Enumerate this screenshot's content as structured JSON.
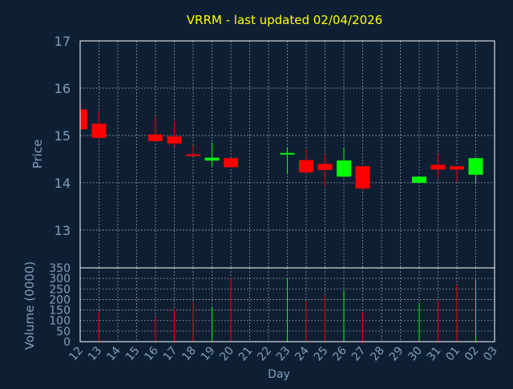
{
  "colors": {
    "background": "#0f1f33",
    "title": "#ffff00",
    "axis_text": "#7f9fbf",
    "frame": "#ffffff",
    "grid": "#8a95a3",
    "up": "#00ff00",
    "down": "#ff0000"
  },
  "chart_data": [
    {
      "type": "candlestick",
      "title": "VRRM - last updated 02/04/2026",
      "ylabel": "Price",
      "ylim": [
        12.2,
        17
      ],
      "yticks": [
        13,
        14,
        15,
        16,
        17
      ],
      "grid": true,
      "series": [
        {
          "day": "12",
          "open": 15.55,
          "high": 15.55,
          "low": 15.13,
          "close": 15.13
        },
        {
          "day": "13",
          "open": 15.25,
          "high": 15.52,
          "low": 14.92,
          "close": 14.95
        },
        {
          "day": "16",
          "open": 15.02,
          "high": 15.4,
          "low": 14.88,
          "close": 14.88
        },
        {
          "day": "17",
          "open": 14.98,
          "high": 15.3,
          "low": 14.75,
          "close": 14.83
        },
        {
          "day": "18",
          "open": 14.6,
          "high": 14.8,
          "low": 14.58,
          "close": 14.58
        },
        {
          "day": "19",
          "open": 14.47,
          "high": 14.85,
          "low": 14.35,
          "close": 14.53
        },
        {
          "day": "20",
          "open": 14.52,
          "high": 14.52,
          "low": 14.32,
          "close": 14.33
        },
        {
          "day": "23",
          "open": 14.6,
          "high": 14.75,
          "low": 14.18,
          "close": 14.63
        },
        {
          "day": "24",
          "open": 14.48,
          "high": 14.7,
          "low": 14.2,
          "close": 14.22
        },
        {
          "day": "25",
          "open": 14.4,
          "high": 14.6,
          "low": 13.93,
          "close": 14.27
        },
        {
          "day": "26",
          "open": 14.13,
          "high": 14.75,
          "low": 14.13,
          "close": 14.47
        },
        {
          "day": "27",
          "open": 14.35,
          "high": 14.35,
          "low": 13.83,
          "close": 13.88
        },
        {
          "day": "30",
          "open": 14.0,
          "high": 14.13,
          "low": 14.0,
          "close": 14.13
        },
        {
          "day": "31",
          "open": 14.38,
          "high": 14.6,
          "low": 14.1,
          "close": 14.28
        },
        {
          "day": "01",
          "open": 14.35,
          "high": 14.35,
          "low": 14.02,
          "close": 14.28
        },
        {
          "day": "02",
          "open": 14.17,
          "high": 14.52,
          "low": 13.97,
          "close": 14.52
        }
      ]
    },
    {
      "type": "bar",
      "ylabel": "Volume (0000)",
      "xlabel": "Day",
      "ylim": [
        0,
        350
      ],
      "yticks": [
        0,
        50,
        100,
        150,
        200,
        250,
        300,
        350
      ],
      "categories": [
        "12",
        "13",
        "14",
        "15",
        "16",
        "17",
        "18",
        "19",
        "20",
        "21",
        "22",
        "23",
        "24",
        "25",
        "26",
        "27",
        "28",
        "29",
        "30",
        "31",
        "01",
        "02",
        "03"
      ],
      "grid": true,
      "series": [
        {
          "day": "13",
          "value": 145,
          "direction": "down"
        },
        {
          "day": "16",
          "value": 115,
          "direction": "down"
        },
        {
          "day": "17",
          "value": 155,
          "direction": "down"
        },
        {
          "day": "18",
          "value": 185,
          "direction": "down"
        },
        {
          "day": "19",
          "value": 165,
          "direction": "up"
        },
        {
          "day": "20",
          "value": 305,
          "direction": "down"
        },
        {
          "day": "23",
          "value": 300,
          "direction": "up"
        },
        {
          "day": "24",
          "value": 190,
          "direction": "down"
        },
        {
          "day": "25",
          "value": 220,
          "direction": "down"
        },
        {
          "day": "26",
          "value": 245,
          "direction": "up"
        },
        {
          "day": "27",
          "value": 140,
          "direction": "down"
        },
        {
          "day": "30",
          "value": 185,
          "direction": "up"
        },
        {
          "day": "31",
          "value": 195,
          "direction": "down"
        },
        {
          "day": "01",
          "value": 270,
          "direction": "down"
        },
        {
          "day": "02",
          "value": 295,
          "direction": "up"
        }
      ]
    }
  ]
}
